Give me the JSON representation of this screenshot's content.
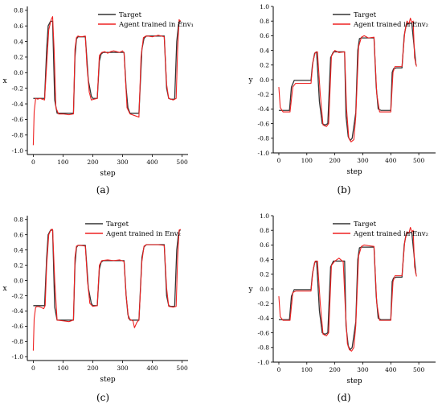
{
  "figure": {
    "captions": [
      "(a)",
      "(b)",
      "(c)",
      "(d)"
    ]
  },
  "colors": {
    "target": "#333333",
    "agent": "#ee2222",
    "axis": "#000000"
  },
  "chart_data": [
    {
      "type": "line",
      "xlabel": "step",
      "ylabel": "x",
      "xlim": [
        -20,
        520
      ],
      "ylim": [
        -1.05,
        0.85
      ],
      "xticks": [
        0,
        100,
        200,
        300,
        400,
        500
      ],
      "yticks": [
        -1.0,
        -0.8,
        -0.6,
        -0.4,
        -0.2,
        0.0,
        0.2,
        0.4,
        0.6,
        0.8
      ],
      "legend_position": "top-left",
      "series": [
        {
          "name": "Target",
          "x": [
            0,
            38,
            45,
            50,
            58,
            65,
            72,
            80,
            135,
            140,
            145,
            150,
            175,
            185,
            195,
            200,
            215,
            222,
            228,
            235,
            240,
            305,
            312,
            318,
            325,
            340,
            355,
            365,
            372,
            380,
            385,
            440,
            448,
            455,
            462,
            475,
            482,
            488,
            492,
            495
          ],
          "y": [
            -0.33,
            -0.33,
            0.3,
            0.6,
            0.66,
            0.66,
            -0.35,
            -0.52,
            -0.52,
            0.2,
            0.43,
            0.46,
            0.46,
            -0.1,
            -0.3,
            -0.33,
            -0.33,
            0.15,
            0.24,
            0.26,
            0.26,
            0.26,
            -0.2,
            -0.45,
            -0.52,
            -0.52,
            -0.52,
            0.3,
            0.44,
            0.47,
            0.47,
            0.47,
            -0.2,
            -0.33,
            -0.34,
            -0.34,
            0.4,
            0.62,
            0.66,
            0.66
          ]
        },
        {
          "name": "Agent trained in Env₁",
          "x": [
            0,
            3,
            8,
            15,
            22,
            30,
            38,
            45,
            52,
            60,
            65,
            70,
            76,
            85,
            100,
            120,
            135,
            140,
            145,
            150,
            160,
            175,
            180,
            188,
            195,
            205,
            215,
            222,
            230,
            240,
            250,
            260,
            270,
            280,
            290,
            300,
            305,
            310,
            315,
            325,
            340,
            355,
            362,
            370,
            378,
            385,
            400,
            420,
            440,
            448,
            455,
            470,
            480,
            485,
            490,
            495
          ],
          "y": [
            -0.93,
            -0.5,
            -0.33,
            -0.34,
            -0.33,
            -0.34,
            -0.35,
            0.1,
            0.55,
            0.68,
            0.72,
            0.3,
            -0.45,
            -0.53,
            -0.53,
            -0.54,
            -0.53,
            0.3,
            0.45,
            0.47,
            0.46,
            0.47,
            0.1,
            -0.25,
            -0.35,
            -0.34,
            -0.33,
            0.22,
            0.26,
            0.27,
            0.25,
            0.27,
            0.28,
            0.27,
            0.26,
            0.28,
            0.25,
            -0.1,
            -0.45,
            -0.53,
            -0.55,
            -0.57,
            0.2,
            0.45,
            0.47,
            0.47,
            0.46,
            0.48,
            0.46,
            -0.15,
            -0.33,
            -0.35,
            -0.33,
            0.3,
            0.68,
            0.66
          ]
        }
      ]
    },
    {
      "type": "line",
      "xlabel": "step",
      "ylabel": "y",
      "xlim": [
        -20,
        560
      ],
      "ylim": [
        -1.0,
        1.0
      ],
      "xticks": [
        0,
        100,
        200,
        300,
        400,
        500
      ],
      "yticks": [
        -1.0,
        -0.8,
        -0.6,
        -0.4,
        -0.2,
        0.0,
        0.2,
        0.4,
        0.6,
        0.8,
        1.0
      ],
      "legend_position": "top-right",
      "series": [
        {
          "name": "Target",
          "x": [
            0,
            38,
            45,
            55,
            115,
            120,
            128,
            135,
            145,
            155,
            165,
            175,
            185,
            195,
            235,
            240,
            248,
            255,
            262,
            275,
            282,
            288,
            295,
            340,
            348,
            355,
            365,
            400,
            405,
            410,
            420,
            440,
            448,
            455,
            465,
            475,
            490
          ],
          "y": [
            -0.42,
            -0.42,
            -0.1,
            -0.01,
            -0.01,
            0.2,
            0.36,
            0.38,
            -0.3,
            -0.6,
            -0.62,
            -0.6,
            0.3,
            0.38,
            0.38,
            -0.5,
            -0.78,
            -0.83,
            -0.8,
            -0.45,
            0.4,
            0.56,
            0.57,
            0.57,
            -0.1,
            -0.4,
            -0.42,
            -0.42,
            0.1,
            0.15,
            0.16,
            0.16,
            0.6,
            0.75,
            0.77,
            0.77,
            0.2
          ]
        },
        {
          "name": "Agent trained in Env₂",
          "x": [
            0,
            5,
            15,
            40,
            50,
            60,
            115,
            122,
            130,
            138,
            148,
            158,
            170,
            178,
            188,
            200,
            215,
            235,
            242,
            250,
            258,
            268,
            275,
            285,
            295,
            305,
            320,
            340,
            350,
            360,
            400,
            408,
            415,
            440,
            450,
            458,
            465,
            470,
            475,
            480,
            485,
            492
          ],
          "y": [
            -0.1,
            -0.38,
            -0.44,
            -0.44,
            -0.1,
            -0.05,
            -0.05,
            0.25,
            0.37,
            0.38,
            -0.2,
            -0.62,
            -0.64,
            -0.6,
            0.32,
            0.4,
            0.37,
            0.38,
            -0.4,
            -0.8,
            -0.85,
            -0.82,
            -0.5,
            0.45,
            0.58,
            0.6,
            0.57,
            0.58,
            -0.2,
            -0.44,
            -0.44,
            0.1,
            0.18,
            0.18,
            0.65,
            0.8,
            0.76,
            0.84,
            0.78,
            0.8,
            0.3,
            0.18
          ]
        }
      ]
    },
    {
      "type": "line",
      "xlabel": "step",
      "ylabel": "x",
      "xlim": [
        -20,
        520
      ],
      "ylim": [
        -1.05,
        0.85
      ],
      "xticks": [
        0,
        100,
        200,
        300,
        400,
        500
      ],
      "yticks": [
        -1.0,
        -0.8,
        -0.6,
        -0.4,
        -0.2,
        0.0,
        0.2,
        0.4,
        0.6,
        0.8
      ],
      "legend_position": "top-right",
      "series": [
        {
          "name": "Target",
          "x": [
            0,
            38,
            45,
            50,
            58,
            65,
            72,
            80,
            135,
            140,
            145,
            150,
            175,
            185,
            195,
            200,
            215,
            222,
            228,
            235,
            240,
            305,
            312,
            318,
            325,
            340,
            355,
            365,
            372,
            380,
            385,
            440,
            448,
            455,
            462,
            475,
            482,
            488,
            492,
            495
          ],
          "y": [
            -0.33,
            -0.33,
            0.3,
            0.6,
            0.66,
            0.66,
            -0.35,
            -0.52,
            -0.52,
            0.2,
            0.43,
            0.46,
            0.46,
            -0.1,
            -0.3,
            -0.33,
            -0.33,
            0.15,
            0.24,
            0.26,
            0.26,
            0.26,
            -0.2,
            -0.45,
            -0.52,
            -0.52,
            -0.52,
            0.3,
            0.44,
            0.47,
            0.47,
            0.47,
            -0.2,
            -0.33,
            -0.34,
            -0.34,
            0.4,
            0.62,
            0.66,
            0.66
          ]
        },
        {
          "name": "Agent trained in Env₂",
          "x": [
            0,
            3,
            8,
            15,
            25,
            35,
            40,
            45,
            52,
            60,
            65,
            72,
            80,
            100,
            120,
            135,
            140,
            145,
            150,
            160,
            175,
            182,
            190,
            200,
            215,
            222,
            230,
            250,
            270,
            290,
            305,
            312,
            320,
            335,
            340,
            348,
            355,
            365,
            372,
            380,
            400,
            420,
            440,
            448,
            455,
            470,
            480,
            485,
            490,
            495
          ],
          "y": [
            -0.92,
            -0.5,
            -0.35,
            -0.34,
            -0.35,
            -0.37,
            -0.33,
            0.2,
            0.6,
            0.67,
            0.67,
            0.0,
            -0.52,
            -0.53,
            -0.54,
            -0.52,
            0.3,
            0.45,
            0.46,
            0.46,
            0.45,
            0.0,
            -0.3,
            -0.34,
            -0.33,
            0.2,
            0.26,
            0.27,
            0.26,
            0.27,
            0.25,
            -0.2,
            -0.5,
            -0.53,
            -0.62,
            -0.55,
            -0.52,
            0.25,
            0.45,
            0.47,
            0.47,
            0.47,
            0.46,
            -0.1,
            -0.34,
            -0.35,
            -0.34,
            0.3,
            0.66,
            0.67
          ]
        }
      ]
    },
    {
      "type": "line",
      "xlabel": "step",
      "ylabel": "y",
      "xlim": [
        -20,
        560
      ],
      "ylim": [
        -1.0,
        1.0
      ],
      "xticks": [
        0,
        100,
        200,
        300,
        400,
        500
      ],
      "yticks": [
        -1.0,
        -0.8,
        -0.6,
        -0.4,
        -0.2,
        0.0,
        0.2,
        0.4,
        0.6,
        0.8,
        1.0
      ],
      "legend_position": "top-right",
      "series": [
        {
          "name": "Target",
          "x": [
            0,
            38,
            45,
            55,
            115,
            120,
            128,
            135,
            145,
            155,
            165,
            175,
            185,
            195,
            235,
            240,
            248,
            255,
            262,
            275,
            282,
            288,
            295,
            340,
            348,
            355,
            365,
            400,
            405,
            410,
            420,
            440,
            448,
            455,
            465,
            475,
            490
          ],
          "y": [
            -0.42,
            -0.42,
            -0.1,
            -0.01,
            -0.01,
            0.2,
            0.36,
            0.38,
            -0.3,
            -0.6,
            -0.62,
            -0.6,
            0.3,
            0.38,
            0.38,
            -0.5,
            -0.78,
            -0.83,
            -0.8,
            -0.45,
            0.4,
            0.56,
            0.57,
            0.57,
            -0.1,
            -0.4,
            -0.42,
            -0.42,
            0.1,
            0.15,
            0.16,
            0.16,
            0.6,
            0.75,
            0.77,
            0.77,
            0.2
          ]
        },
        {
          "name": "Agent trained in Env₂",
          "x": [
            0,
            5,
            15,
            40,
            50,
            60,
            115,
            122,
            130,
            138,
            148,
            158,
            170,
            178,
            188,
            200,
            215,
            230,
            238,
            245,
            252,
            260,
            268,
            275,
            285,
            295,
            305,
            320,
            340,
            350,
            360,
            400,
            408,
            415,
            440,
            450,
            458,
            465,
            470,
            475,
            480,
            485,
            492
          ],
          "y": [
            -0.1,
            -0.38,
            -0.43,
            -0.43,
            -0.05,
            -0.03,
            -0.03,
            0.25,
            0.38,
            0.38,
            -0.2,
            -0.62,
            -0.64,
            -0.6,
            0.32,
            0.38,
            0.42,
            0.37,
            -0.3,
            -0.75,
            -0.83,
            -0.85,
            -0.8,
            -0.5,
            0.45,
            0.58,
            0.6,
            0.59,
            0.58,
            -0.2,
            -0.43,
            -0.43,
            0.1,
            0.18,
            0.18,
            0.65,
            0.78,
            0.76,
            0.84,
            0.78,
            0.8,
            0.3,
            0.17
          ]
        }
      ]
    }
  ]
}
